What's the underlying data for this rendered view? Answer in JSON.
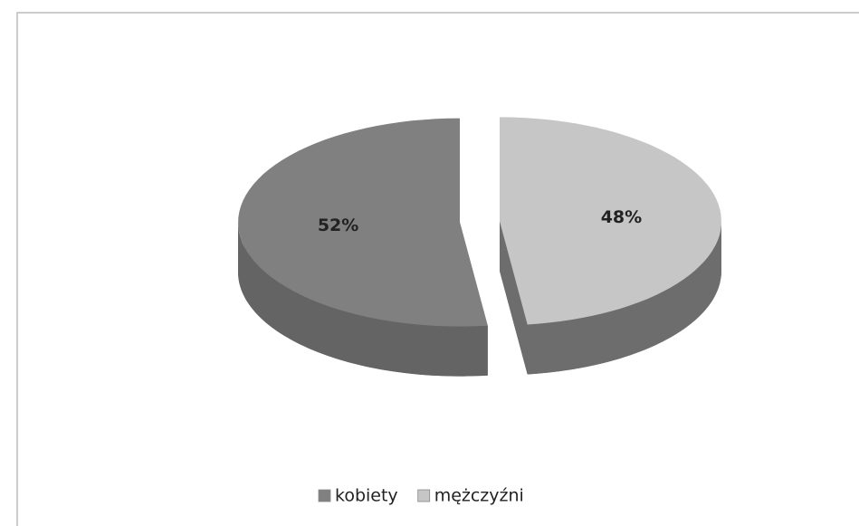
{
  "chart_data": {
    "type": "pie",
    "categories": [
      "kobiety",
      "mężczyźni"
    ],
    "values": [
      52,
      48
    ],
    "value_labels": [
      "52%",
      "48%"
    ],
    "colors": [
      "#808080",
      "#c6c6c6"
    ],
    "legend": "bottom"
  }
}
